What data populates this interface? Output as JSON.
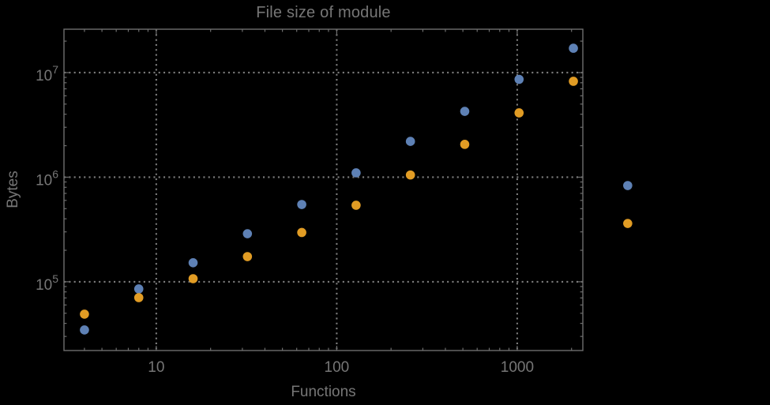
{
  "chart_data": {
    "type": "scatter",
    "title": "File size of module",
    "xlabel": "Functions",
    "ylabel": "Bytes",
    "x_scale": "log",
    "y_scale": "log",
    "xlim": [
      3.08,
      2310
    ],
    "ylim": [
      22000,
      26000000
    ],
    "grid": "dotted-at-major-ticks",
    "legend": "none",
    "x_ticks": {
      "major": [
        10,
        100,
        1000
      ],
      "labels": [
        "10",
        "100",
        "1000"
      ]
    },
    "y_ticks": {
      "major": [
        100000,
        1000000,
        10000000
      ],
      "label_base": "10",
      "label_exponents": [
        "5",
        "6",
        "7"
      ]
    },
    "series": [
      {
        "name": "blue-series",
        "color": "#5E81B5",
        "marker": "disk",
        "points": [
          [
            4,
            34600
          ],
          [
            8,
            85400
          ],
          [
            16,
            152000
          ],
          [
            32,
            288000
          ],
          [
            64,
            548000
          ],
          [
            128,
            1100000
          ],
          [
            256,
            2200000
          ],
          [
            512,
            4260000
          ],
          [
            1024,
            8620000
          ],
          [
            2048,
            17100000
          ],
          [
            4096,
            832000
          ]
        ]
      },
      {
        "name": "orange-series",
        "color": "#E19C24",
        "marker": "disk",
        "points": [
          [
            4,
            49000
          ],
          [
            8,
            70500
          ],
          [
            16,
            107000
          ],
          [
            32,
            174000
          ],
          [
            64,
            296000
          ],
          [
            128,
            539000
          ],
          [
            256,
            1050000
          ],
          [
            512,
            2060000
          ],
          [
            1024,
            4120000
          ],
          [
            2048,
            8260000
          ],
          [
            4096,
            361000
          ]
        ]
      }
    ]
  },
  "colors": {
    "background": "#000000",
    "text": "#767676",
    "frame": "#6e6e6e",
    "grid": "#7c7c7c"
  }
}
